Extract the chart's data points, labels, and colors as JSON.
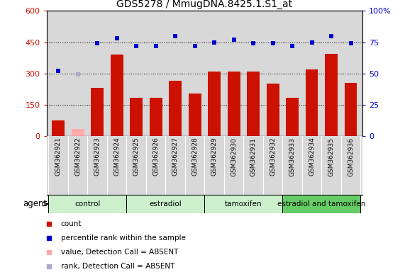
{
  "title": "GDS5278 / MmugDNA.8425.1.S1_at",
  "samples": [
    "GSM362921",
    "GSM362922",
    "GSM362923",
    "GSM362924",
    "GSM362925",
    "GSM362926",
    "GSM362927",
    "GSM362928",
    "GSM362929",
    "GSM362930",
    "GSM362931",
    "GSM362932",
    "GSM362933",
    "GSM362934",
    "GSM362935",
    "GSM362936"
  ],
  "count_values": [
    75,
    35,
    230,
    390,
    185,
    185,
    265,
    205,
    310,
    310,
    310,
    250,
    185,
    320,
    395,
    255
  ],
  "count_absent": [
    false,
    true,
    false,
    false,
    false,
    false,
    false,
    false,
    false,
    false,
    false,
    false,
    false,
    false,
    false,
    false
  ],
  "rank_values": [
    52,
    49,
    74,
    78,
    72,
    72,
    80,
    72,
    75,
    77,
    74,
    74,
    72,
    75,
    80,
    74
  ],
  "rank_absent": [
    false,
    false,
    false,
    false,
    false,
    false,
    false,
    false,
    false,
    false,
    false,
    false,
    false,
    false,
    false,
    false
  ],
  "rank_absent_override": [
    false,
    true,
    false,
    false,
    false,
    false,
    false,
    false,
    false,
    false,
    false,
    false,
    false,
    false,
    false,
    false
  ],
  "groups": [
    {
      "label": "control",
      "start": 0,
      "end": 4,
      "color": "#ccf0cc"
    },
    {
      "label": "estradiol",
      "start": 4,
      "end": 8,
      "color": "#ccf0cc"
    },
    {
      "label": "tamoxifen",
      "start": 8,
      "end": 12,
      "color": "#ccf0cc"
    },
    {
      "label": "estradiol and tamoxifen",
      "start": 12,
      "end": 16,
      "color": "#66cc66"
    }
  ],
  "ylim_left": [
    0,
    600
  ],
  "ylim_right": [
    0,
    100
  ],
  "yticks_left": [
    0,
    150,
    300,
    450,
    600
  ],
  "yticks_right": [
    0,
    25,
    50,
    75,
    100
  ],
  "bar_color": "#cc1100",
  "bar_absent_color": "#ffaaaa",
  "dot_color": "#0000cc",
  "dot_absent_color": "#aaaacc",
  "dot_size": 25,
  "plot_bg_color": "#d8d8d8",
  "agent_label": "agent"
}
